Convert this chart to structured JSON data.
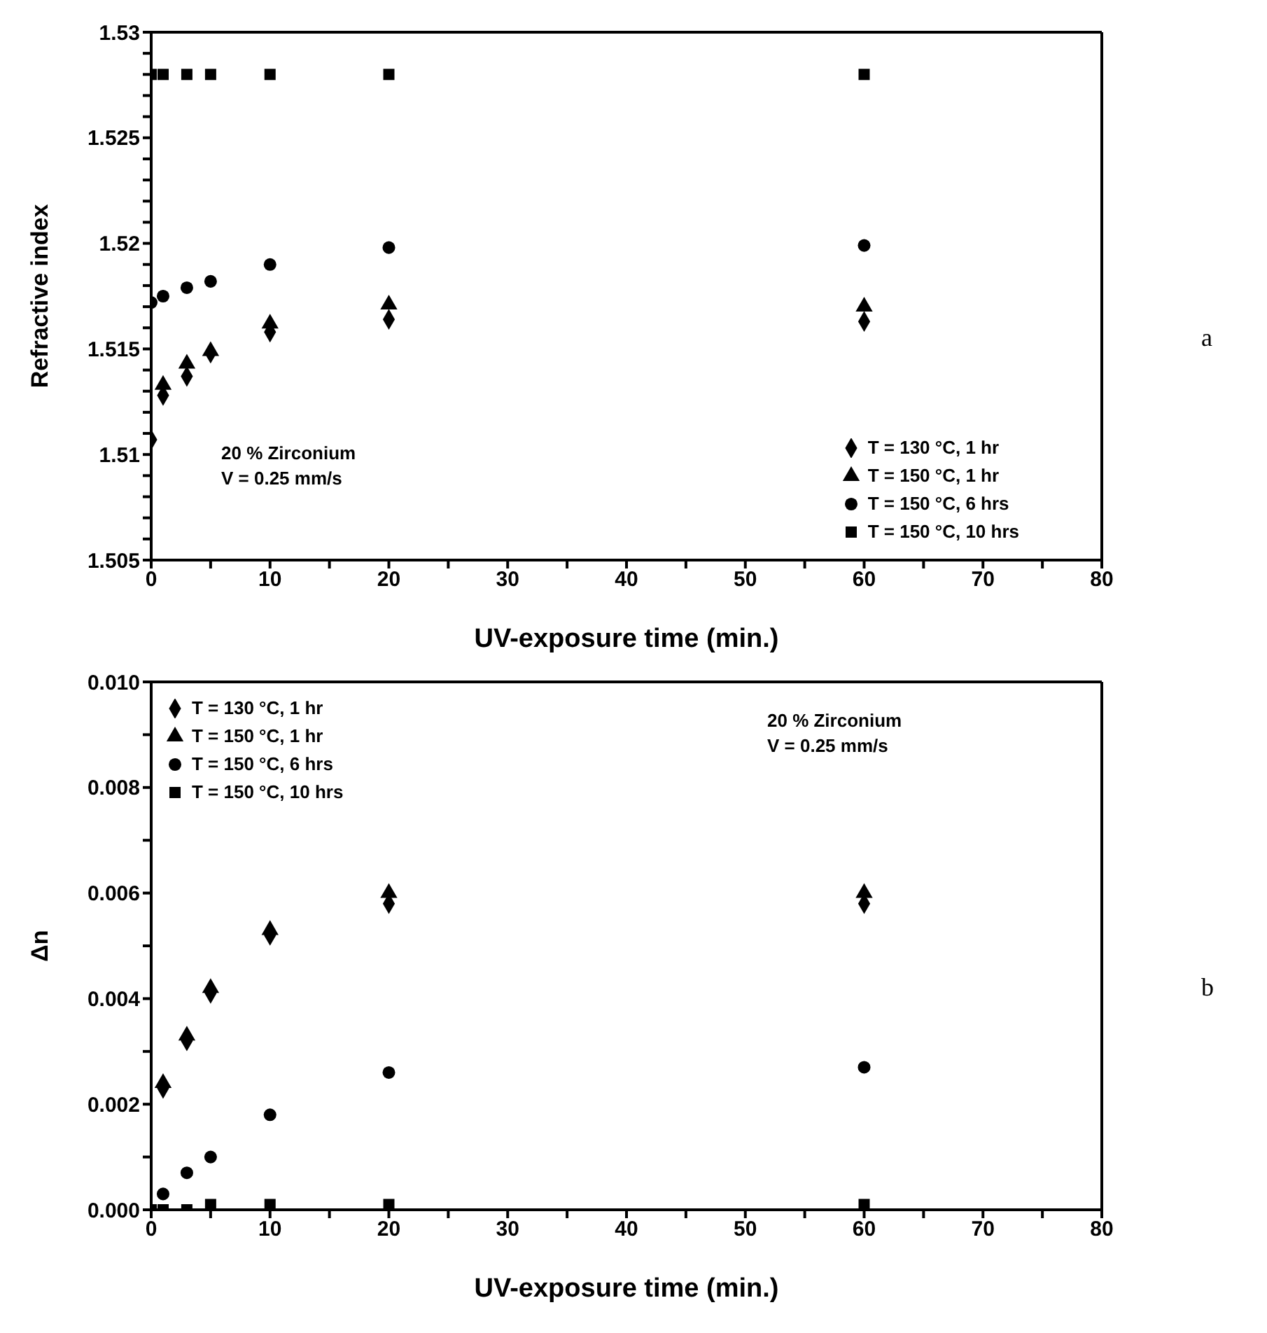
{
  "chart_data": [
    {
      "type": "scatter",
      "xlabel": "UV-exposure time (min.)",
      "ylabel": "Refractive index",
      "annotations": [
        "20 % Zirconium",
        "V = 0.25 mm/s",
        "a"
      ],
      "x": [
        0,
        1,
        3,
        5,
        10,
        20,
        60
      ],
      "series": [
        {
          "name": "T = 130 °C, 1 hr",
          "color": "#000000",
          "marker": "diamond",
          "values": [
            1.5107,
            1.5128,
            1.5137,
            1.5148,
            1.5158,
            1.5164,
            1.5163
          ]
        },
        {
          "name": "T = 150 °C, 1 hr",
          "color": "#000000",
          "marker": "triangle",
          "values": [
            null,
            1.5133,
            1.5143,
            1.5149,
            1.5162,
            1.5171,
            1.517
          ]
        },
        {
          "name": "T = 150 °C, 6 hrs",
          "color": "#000000",
          "marker": "circle",
          "values": [
            1.5172,
            1.5175,
            1.5179,
            1.5182,
            1.519,
            1.5198,
            1.5199
          ]
        },
        {
          "name": "T = 150 °C, 10 hrs",
          "color": "#000000",
          "marker": "square",
          "values": [
            1.528,
            1.528,
            1.528,
            1.528,
            1.528,
            1.528,
            1.528
          ]
        }
      ],
      "xlim": [
        0,
        80
      ],
      "xticks": [
        0,
        {
          "value": 5,
          "label": null
        },
        10,
        {
          "value": 15,
          "label": null
        },
        20,
        {
          "value": 25,
          "label": null
        },
        30,
        {
          "value": 35,
          "label": null
        },
        40,
        {
          "value": 45,
          "label": null
        },
        50,
        {
          "value": 55,
          "label": null
        },
        60,
        {
          "value": 65,
          "label": null
        },
        70,
        {
          "value": 75,
          "label": null
        },
        80
      ],
      "ylim": [
        1.505,
        1.53
      ],
      "yticks": [
        1.505,
        {
          "value": 1.506,
          "label": null
        },
        {
          "value": 1.507,
          "label": null
        },
        {
          "value": 1.508,
          "label": null
        },
        {
          "value": 1.509,
          "label": null
        },
        1.51,
        {
          "value": 1.511,
          "label": null
        },
        {
          "value": 1.512,
          "label": null
        },
        {
          "value": 1.513,
          "label": null
        },
        {
          "value": 1.514,
          "label": null
        },
        1.515,
        {
          "value": 1.516,
          "label": null
        },
        {
          "value": 1.517,
          "label": null
        },
        {
          "value": 1.518,
          "label": null
        },
        {
          "value": 1.519,
          "label": null
        },
        1.52,
        {
          "value": 1.521,
          "label": null
        },
        {
          "value": 1.522,
          "label": null
        },
        {
          "value": 1.523,
          "label": null
        },
        {
          "value": 1.524,
          "label": null
        },
        1.525,
        {
          "value": 1.526,
          "label": null
        },
        {
          "value": 1.527,
          "label": null
        },
        {
          "value": 1.528,
          "label": null
        },
        {
          "value": 1.529,
          "label": null
        },
        1.53
      ],
      "legend": "bottom right"
    },
    {
      "type": "scatter",
      "xlabel": "UV-exposure time (min.)",
      "ylabel": "Δn",
      "annotations": [
        "20 % Zirconium",
        "V = 0.25 mm/s",
        "b"
      ],
      "x": [
        0,
        1,
        3,
        5,
        10,
        20,
        60
      ],
      "series": [
        {
          "name": "T = 130 °C, 1 hr",
          "color": "#000000",
          "marker": "diamond",
          "values": [
            null,
            0.0023,
            0.0032,
            0.0041,
            0.0052,
            0.0058,
            0.0058
          ]
        },
        {
          "name": "T = 150 °C, 1 hr",
          "color": "#000000",
          "marker": "triangle",
          "values": [
            null,
            0.0024,
            0.0033,
            0.0042,
            0.0053,
            0.006,
            0.006
          ]
        },
        {
          "name": "T = 150 °C, 6 hrs",
          "color": "#000000",
          "marker": "circle",
          "values": [
            null,
            0.0003,
            0.0007,
            0.001,
            0.0018,
            0.0026,
            0.0027
          ]
        },
        {
          "name": "T = 150 °C, 10 hrs",
          "color": "#000000",
          "marker": "square",
          "values": [
            0,
            0,
            0,
            0.0001,
            0.0001,
            0.0001,
            0.0001
          ]
        }
      ],
      "xlim": [
        0,
        80
      ],
      "xticks": [
        0,
        {
          "value": 5,
          "label": null
        },
        10,
        {
          "value": 15,
          "label": null
        },
        20,
        {
          "value": 25,
          "label": null
        },
        30,
        {
          "value": 35,
          "label": null
        },
        40,
        {
          "value": 45,
          "label": null
        },
        50,
        {
          "value": 55,
          "label": null
        },
        60,
        {
          "value": 65,
          "label": null
        },
        70,
        {
          "value": 75,
          "label": null
        },
        80
      ],
      "ylim": [
        0,
        0.01
      ],
      "yticks": [
        {
          "value": 0,
          "label": "0.000"
        },
        {
          "value": 0.001,
          "label": null
        },
        {
          "value": 0.002,
          "label": "0.002"
        },
        {
          "value": 0.003,
          "label": null
        },
        {
          "value": 0.004,
          "label": "0.004"
        },
        {
          "value": 0.005,
          "label": null
        },
        {
          "value": 0.006,
          "label": "0.006"
        },
        {
          "value": 0.007,
          "label": null
        },
        {
          "value": 0.008,
          "label": "0.008"
        },
        {
          "value": 0.009,
          "label": null
        },
        {
          "value": 0.01,
          "label": "0.010"
        }
      ],
      "legend": "top left"
    }
  ]
}
